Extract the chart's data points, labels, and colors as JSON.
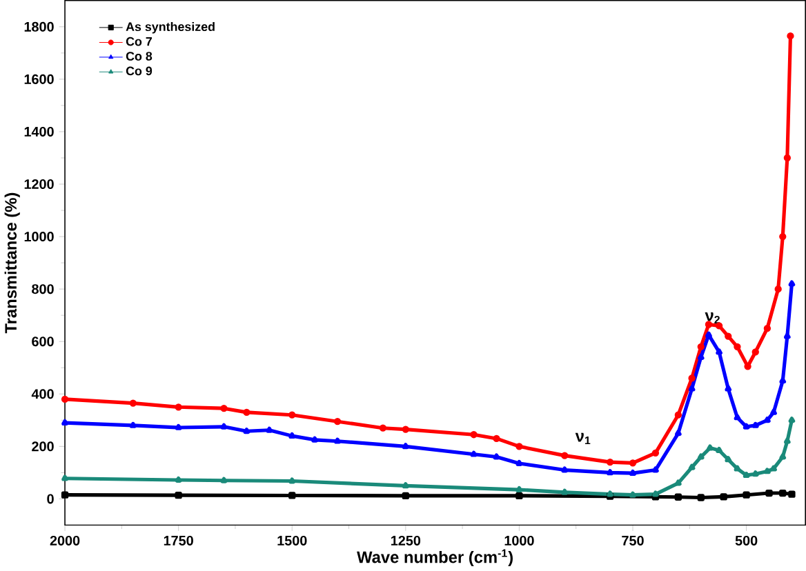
{
  "chart_data": {
    "type": "line",
    "xlabel": "Wave number (cm$^{-1}$)",
    "ylabel": "Transmittance (%)",
    "xlim": [
      2000,
      370
    ],
    "ylim": [
      -100,
      1900
    ],
    "xticks": [
      2000,
      1750,
      1500,
      1250,
      1000,
      750,
      500
    ],
    "yticks": [
      0,
      200,
      400,
      600,
      800,
      1000,
      1200,
      1400,
      1600,
      1800
    ],
    "legend": "top left",
    "grid": false,
    "annotations": [
      "ν$_{1}$",
      "ν$_{2}$"
    ],
    "series": [
      {
        "name": "As synthesized",
        "color": "#000000",
        "marker": "square",
        "x": [
          2000,
          1750,
          1500,
          1250,
          1000,
          800,
          700,
          650,
          600,
          550,
          500,
          450,
          420,
          400
        ],
        "values": [
          15,
          14,
          13,
          12,
          12,
          10,
          8,
          7,
          5,
          8,
          15,
          22,
          22,
          18
        ]
      },
      {
        "name": "Co 7",
        "color": "#ff0000",
        "marker": "circle",
        "x": [
          2000,
          1850,
          1750,
          1650,
          1600,
          1500,
          1400,
          1300,
          1250,
          1100,
          1050,
          1000,
          900,
          800,
          750,
          700,
          650,
          620,
          600,
          583,
          560,
          540,
          520,
          497,
          480,
          454,
          430,
          420,
          410,
          403
        ],
        "values": [
          380,
          365,
          350,
          345,
          330,
          320,
          295,
          270,
          265,
          245,
          230,
          200,
          165,
          140,
          137,
          175,
          320,
          460,
          580,
          665,
          660,
          620,
          580,
          505,
          560,
          650,
          800,
          1000,
          1300,
          1765
        ]
      },
      {
        "name": "Co 8",
        "color": "#0000ff",
        "marker": "triangle",
        "x": [
          2000,
          1850,
          1750,
          1650,
          1600,
          1550,
          1500,
          1450,
          1400,
          1250,
          1100,
          1050,
          1000,
          900,
          800,
          750,
          700,
          650,
          620,
          600,
          583,
          560,
          540,
          520,
          500,
          480,
          454,
          440,
          420,
          410,
          400
        ],
        "values": [
          290,
          280,
          272,
          275,
          258,
          262,
          240,
          225,
          220,
          200,
          170,
          160,
          135,
          110,
          100,
          98,
          110,
          250,
          420,
          540,
          625,
          560,
          420,
          310,
          275,
          280,
          300,
          330,
          450,
          620,
          820
        ]
      },
      {
        "name": "Co 9",
        "color": "#1a8a7a",
        "marker": "triangle down",
        "x": [
          2000,
          1750,
          1650,
          1500,
          1250,
          1000,
          900,
          800,
          750,
          700,
          650,
          620,
          600,
          580,
          560,
          540,
          520,
          500,
          480,
          454,
          440,
          420,
          410,
          400
        ],
        "values": [
          78,
          72,
          70,
          68,
          50,
          35,
          25,
          18,
          15,
          18,
          60,
          120,
          160,
          194,
          185,
          150,
          115,
          90,
          95,
          105,
          115,
          160,
          220,
          300
        ]
      }
    ]
  }
}
